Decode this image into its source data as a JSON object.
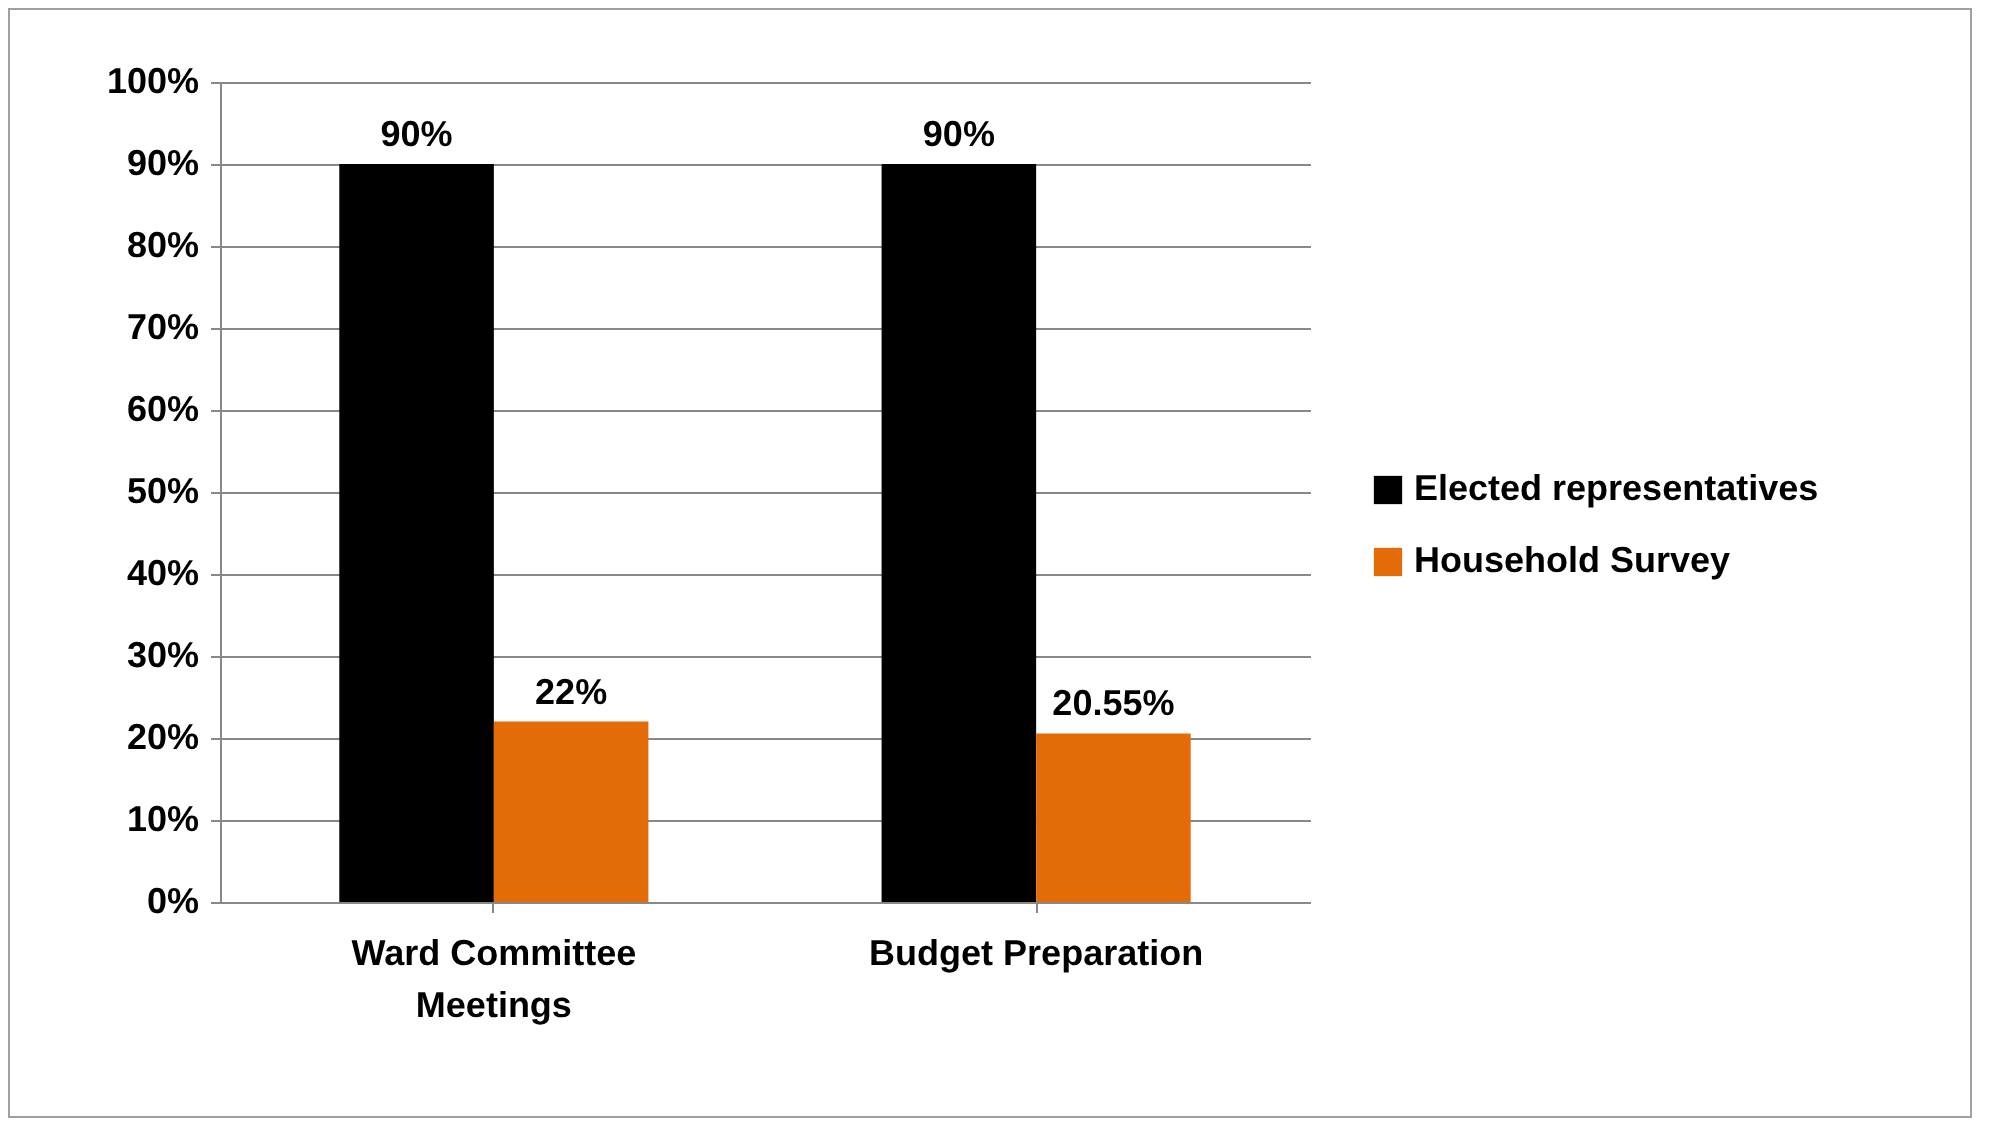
{
  "chart_data": {
    "type": "bar",
    "categories": [
      "Ward Committee Meetings",
      "Budget Preparation"
    ],
    "series": [
      {
        "name": "Elected representatives",
        "color": "#000000",
        "values": [
          90,
          90
        ],
        "value_labels": [
          "90%",
          "90%"
        ]
      },
      {
        "name": "Household Survey",
        "color": "#e36c09",
        "values": [
          22,
          20.55
        ],
        "value_labels": [
          "22%",
          "20.55%"
        ]
      }
    ],
    "ylim": [
      0,
      100
    ],
    "yticks": [
      {
        "value": 0,
        "label": "0%"
      },
      {
        "value": 10,
        "label": "10%"
      },
      {
        "value": 20,
        "label": "20%"
      },
      {
        "value": 30,
        "label": "30%"
      },
      {
        "value": 40,
        "label": "40%"
      },
      {
        "value": 50,
        "label": "50%"
      },
      {
        "value": 60,
        "label": "60%"
      },
      {
        "value": 70,
        "label": "70%"
      },
      {
        "value": 80,
        "label": "80%"
      },
      {
        "value": 90,
        "label": "90%"
      },
      {
        "value": 100,
        "label": "100%"
      }
    ],
    "grid": "y",
    "legend": "right"
  }
}
